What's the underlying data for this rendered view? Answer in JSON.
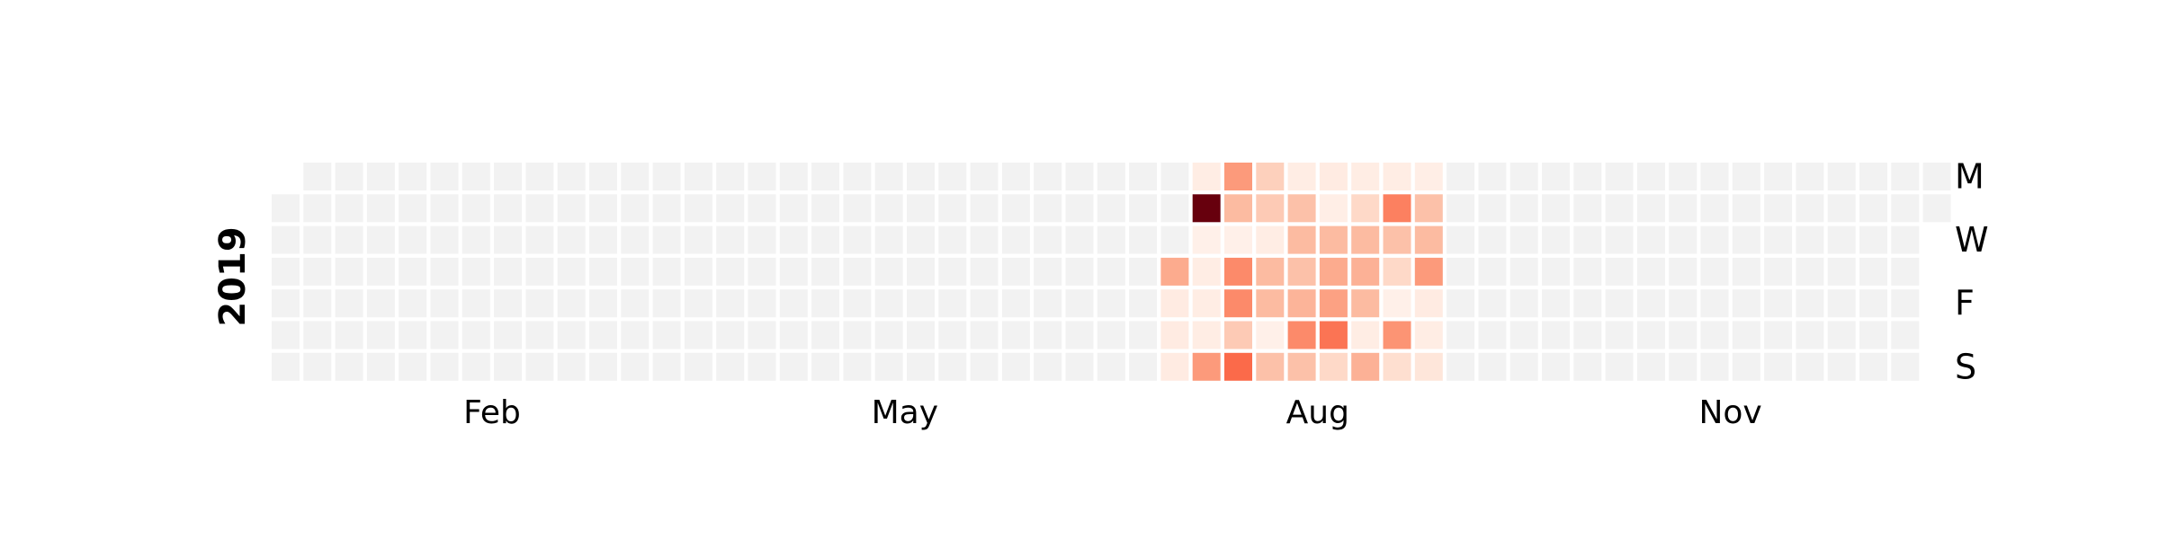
{
  "chart_data": {
    "type": "heatmap",
    "subtype": "calendar",
    "year": "2019",
    "year_label": "2019",
    "month_labels": [
      {
        "label": "Feb",
        "week": 6.5
      },
      {
        "label": "May",
        "week": 19.5
      },
      {
        "label": "Aug",
        "week": 32.5
      },
      {
        "label": "Nov",
        "week": 45.5
      }
    ],
    "weekday_labels": [
      {
        "label": "M",
        "row": 0
      },
      {
        "label": "W",
        "row": 2
      },
      {
        "label": "F",
        "row": 4
      },
      {
        "label": "S",
        "row": 6
      }
    ],
    "first_weekday_row": 1,
    "days_in_year": 365,
    "colorscale": "Reds",
    "empty_color": "#f2f2f2",
    "value_range": [
      0,
      10
    ],
    "active_weeks": [
      {
        "week": 28,
        "values": [
          null,
          null,
          null,
          3,
          0.6,
          0.6,
          0.6
        ]
      },
      {
        "week": 29,
        "values": [
          0.5,
          10,
          0.3,
          0.5,
          0.5,
          0.5,
          3.5
        ]
      },
      {
        "week": 30,
        "values": [
          3.5,
          2.5,
          0.3,
          4,
          4,
          2,
          5
        ]
      },
      {
        "week": 31,
        "values": [
          1.8,
          2,
          0.5,
          2.5,
          2.5,
          0.3,
          2.3
        ]
      },
      {
        "week": 32,
        "values": [
          0.5,
          2.3,
          2.5,
          2.3,
          2.7,
          4,
          2.3
        ]
      },
      {
        "week": 33,
        "values": [
          0.6,
          0.4,
          2.5,
          3,
          3.3,
          4.7,
          1.5
        ]
      },
      {
        "week": 34,
        "values": [
          0.5,
          1.5,
          2.5,
          2.8,
          2.5,
          0.5,
          2.8
        ]
      },
      {
        "week": 35,
        "values": [
          0.5,
          4.3,
          2.3,
          1.5,
          0.3,
          3.7,
          1.3
        ]
      },
      {
        "week": 36,
        "values": [
          0.4,
          2.3,
          2.5,
          3.5,
          0.6,
          0.5,
          0.9
        ]
      }
    ]
  }
}
